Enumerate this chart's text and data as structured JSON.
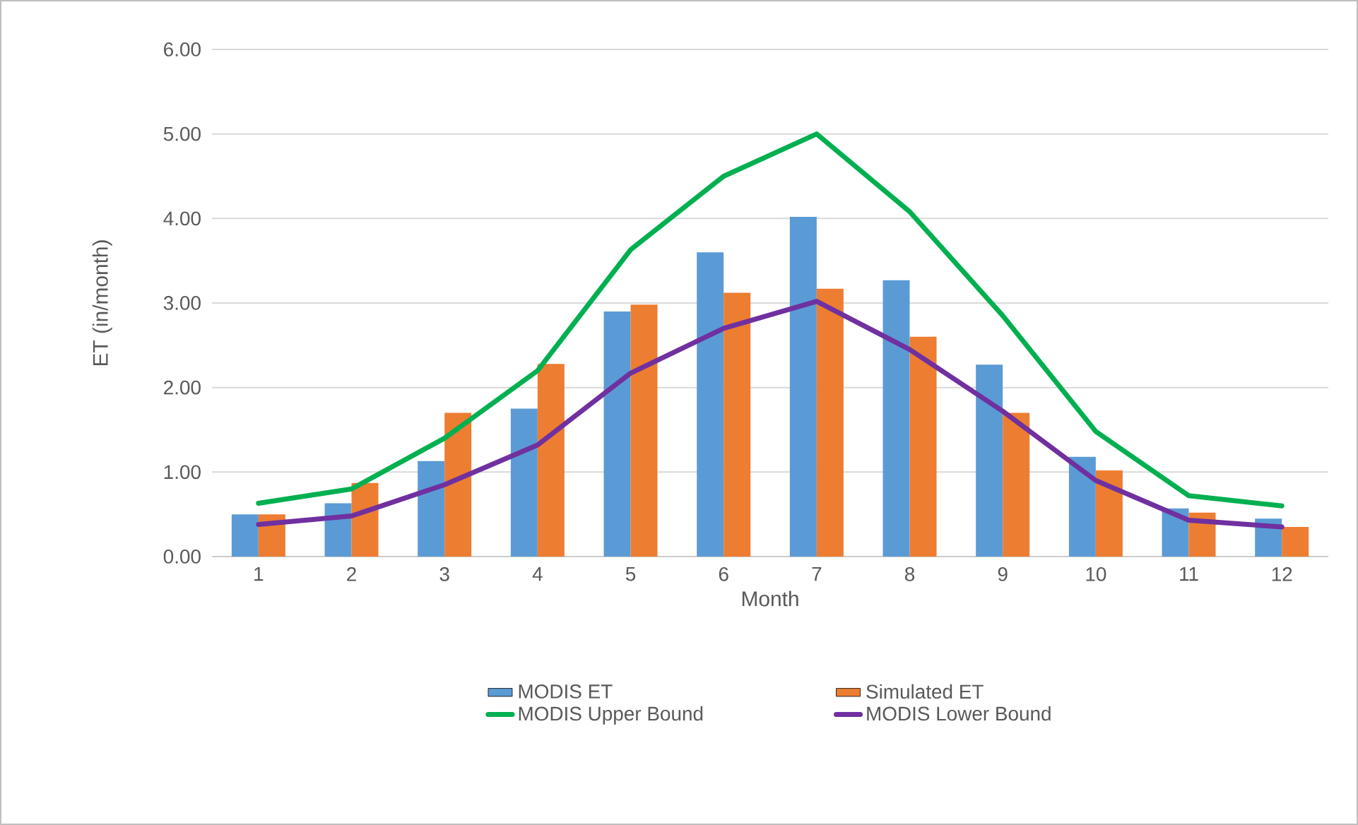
{
  "chart_data": {
    "type": "bar",
    "xlabel": "Month",
    "ylabel": "ET (in/month)",
    "categories": [
      "1",
      "2",
      "3",
      "4",
      "5",
      "6",
      "7",
      "8",
      "9",
      "10",
      "11",
      "12"
    ],
    "series": [
      {
        "name": "MODIS ET",
        "color": "#5b9bd5",
        "values": [
          0.5,
          0.63,
          1.13,
          1.75,
          2.9,
          3.6,
          4.02,
          3.27,
          2.27,
          1.18,
          0.57,
          0.45
        ]
      },
      {
        "name": "Simulated ET",
        "color": "#ed7d31",
        "values": [
          0.5,
          0.87,
          1.7,
          2.28,
          2.98,
          3.12,
          3.17,
          2.6,
          1.7,
          1.02,
          0.52,
          0.35
        ]
      },
      {
        "name": "MODIS Upper Bound",
        "type": "line",
        "color": "#00b050",
        "values": [
          0.63,
          0.8,
          1.4,
          2.2,
          3.63,
          4.5,
          5.0,
          4.08,
          2.85,
          1.48,
          0.72,
          0.6
        ]
      },
      {
        "name": "MODIS Lower Bound",
        "type": "line",
        "color": "#7030a0",
        "values": [
          0.38,
          0.48,
          0.85,
          1.32,
          2.17,
          2.7,
          3.02,
          2.45,
          1.72,
          0.9,
          0.43,
          0.35
        ]
      }
    ],
    "ylim": [
      0,
      6
    ],
    "yticks": [
      {
        "value": 0,
        "label": "0.00"
      },
      {
        "value": 1,
        "label": "1.00"
      },
      {
        "value": 2,
        "label": "2.00"
      },
      {
        "value": 3,
        "label": "3.00"
      },
      {
        "value": 4,
        "label": "4.00"
      },
      {
        "value": 5,
        "label": "5.00"
      },
      {
        "value": 6,
        "label": "6.00"
      }
    ],
    "grid": "y",
    "legend": "bottom",
    "marker": "none",
    "line_style": "solid"
  }
}
